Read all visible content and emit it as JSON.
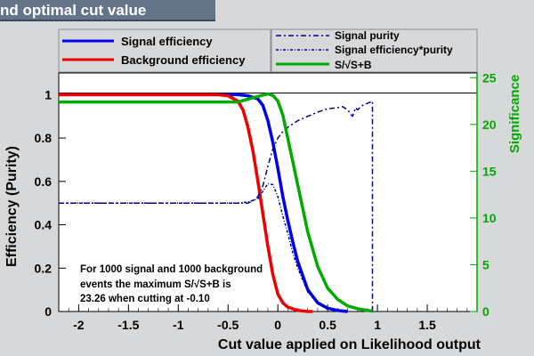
{
  "window": {
    "title": "nd optimal cut value"
  },
  "chart_data": {
    "type": "line",
    "xlabel": "Cut value applied on Likelihood output",
    "ylabel": "Efficiency (Purity)",
    "y2label": "Significance",
    "xlim": [
      -2.2,
      2.0
    ],
    "ylim": [
      0,
      1.1
    ],
    "y2lim": [
      0,
      25.5
    ],
    "xticks": [
      "-2",
      "-1.5",
      "-1",
      "-0.5",
      "0",
      "0.5",
      "1",
      "1.5"
    ],
    "yticks": [
      "0",
      "0.2",
      "0.4",
      "0.6",
      "0.8",
      "1"
    ],
    "y2ticks": [
      "0",
      "5",
      "10",
      "15",
      "20",
      "25"
    ],
    "legend_left": [
      "Signal efficiency",
      "Background efficiency"
    ],
    "legend_right": [
      "Signal purity",
      "Signal efficiency*purity",
      "S/√S+B"
    ],
    "annotation": [
      "For 1000 signal and 1000 background",
      "events the maximum S/√S+B  is",
      "23.26 when cutting at -0.10"
    ],
    "colors": {
      "signal": "#0000ee",
      "background": "#ee0000",
      "significance": "#00aa00",
      "purity": "#00008b",
      "accent": "#4caf50"
    },
    "series": [
      {
        "name": "Signal efficiency",
        "axis": "left",
        "x": [
          -2.2,
          -0.4,
          -0.3,
          -0.2,
          -0.15,
          -0.1,
          -0.05,
          0,
          0.05,
          0.1,
          0.15,
          0.2,
          0.3,
          0.4,
          0.5,
          0.6,
          0.7
        ],
        "y": [
          1.0,
          1.0,
          0.995,
          0.98,
          0.95,
          0.88,
          0.78,
          0.66,
          0.53,
          0.42,
          0.32,
          0.23,
          0.1,
          0.04,
          0.015,
          0.005,
          0.0
        ]
      },
      {
        "name": "Background efficiency",
        "axis": "left",
        "x": [
          -2.2,
          -0.6,
          -0.5,
          -0.4,
          -0.35,
          -0.3,
          -0.25,
          -0.2,
          -0.15,
          -0.1,
          -0.05,
          0,
          0.05,
          0.1,
          0.2,
          0.3,
          0.35
        ],
        "y": [
          1.0,
          1.0,
          0.995,
          0.97,
          0.93,
          0.85,
          0.74,
          0.6,
          0.45,
          0.3,
          0.17,
          0.08,
          0.04,
          0.02,
          0.005,
          0.0,
          0.0
        ]
      },
      {
        "name": "Signal purity",
        "axis": "left",
        "x": [
          -2.2,
          -0.3,
          -0.25,
          -0.2,
          -0.15,
          -0.1,
          -0.05,
          0,
          0.05,
          0.1,
          0.2,
          0.3,
          0.4,
          0.5,
          0.6,
          0.65,
          0.7,
          0.75,
          0.78,
          0.8,
          0.85,
          0.9,
          0.95,
          0.95
        ],
        "y": [
          0.5,
          0.5,
          0.51,
          0.53,
          0.58,
          0.67,
          0.75,
          0.8,
          0.83,
          0.85,
          0.88,
          0.9,
          0.92,
          0.935,
          0.94,
          0.945,
          0.93,
          0.9,
          0.94,
          0.93,
          0.95,
          0.96,
          0.97,
          0.0
        ]
      },
      {
        "name": "Signal efficiency*purity",
        "axis": "left",
        "x": [
          -2.2,
          -0.4,
          -0.3,
          -0.2,
          -0.1,
          -0.05,
          0,
          0.05,
          0.1,
          0.15,
          0.2,
          0.3,
          0.4,
          0.5
        ],
        "y": [
          0.5,
          0.5,
          0.505,
          0.52,
          0.59,
          0.585,
          0.53,
          0.44,
          0.36,
          0.27,
          0.2,
          0.09,
          0.04,
          0.01
        ]
      },
      {
        "name": "S/√S+B",
        "axis": "right",
        "x": [
          -2.2,
          -0.4,
          -0.3,
          -0.2,
          -0.1,
          -0.05,
          0,
          0.05,
          0.1,
          0.15,
          0.2,
          0.25,
          0.3,
          0.4,
          0.5,
          0.6,
          0.7,
          0.8,
          0.85,
          0.9,
          0.95
        ],
        "y": [
          22.4,
          22.4,
          22.7,
          23.0,
          23.26,
          23.1,
          22.5,
          21.0,
          18.5,
          16.0,
          13.5,
          11.0,
          8.5,
          4.8,
          2.5,
          1.3,
          0.6,
          0.3,
          0.2,
          0.1,
          0.05
        ]
      }
    ]
  }
}
